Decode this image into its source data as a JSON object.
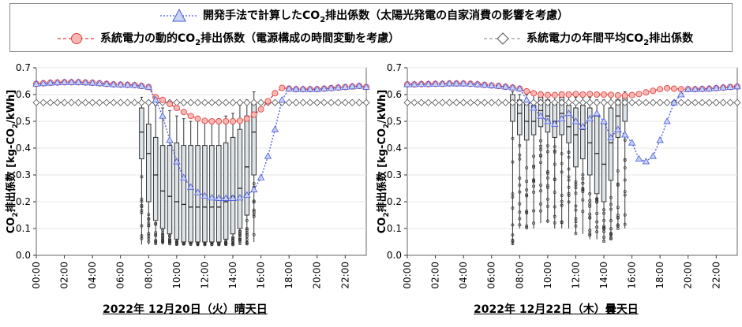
{
  "legend": {
    "method_label_pre": "開発手法で計算したCO",
    "method_label_sub": "2",
    "method_label_post": "排出係数（太陽光発電の自家消費の影響を考慮）",
    "dynamic_label_pre": "系統電力の動的CO",
    "dynamic_label_sub": "2",
    "dynamic_label_post": "排出係数（電源構成の時間変動を考慮）",
    "annual_label_pre": "系統電力の年間平均CO",
    "annual_label_sub": "2",
    "annual_label_post": "排出係数"
  },
  "colors": {
    "method": "#4a57e0",
    "method_fill": "#c9d6f2",
    "dynamic": "#e03a3a",
    "dynamic_fill": "#f7b8b4",
    "annual": "#9a9a9a",
    "box_fill": "#dde5ea",
    "box_stroke": "#333333"
  },
  "chart_data": [
    {
      "type": "line",
      "caption": "2022年 12月20日（火）晴天日",
      "ylabel_pre": "CO",
      "ylabel_sub": "2",
      "ylabel_mid": "排出係数 [kg-CO",
      "ylabel_sub2": "2",
      "ylabel_post": "/kWh]",
      "ylim": [
        0.0,
        0.7
      ],
      "yticks": [
        "0.0",
        "0.1",
        "0.2",
        "0.3",
        "0.4",
        "0.5",
        "0.6",
        "0.7"
      ],
      "xlim": [
        0,
        23.5
      ],
      "xticks": [
        "00:00",
        "02:00",
        "04:00",
        "06:00",
        "08:00",
        "10:00",
        "12:00",
        "14:00",
        "16:00",
        "18:00",
        "20:00",
        "22:00"
      ],
      "grid": true,
      "series": [
        {
          "name": "系統電力の年間平均CO2排出係数",
          "x_start": 0,
          "x_step": 0.5,
          "values": [
            0.57,
            0.57,
            0.57,
            0.57,
            0.57,
            0.57,
            0.57,
            0.57,
            0.57,
            0.57,
            0.57,
            0.57,
            0.57,
            0.57,
            0.57,
            0.57,
            0.57,
            0.57,
            0.57,
            0.57,
            0.57,
            0.57,
            0.57,
            0.57,
            0.57,
            0.57,
            0.57,
            0.57,
            0.57,
            0.57,
            0.57,
            0.57,
            0.57,
            0.57,
            0.57,
            0.57,
            0.57,
            0.57,
            0.57,
            0.57,
            0.57,
            0.57,
            0.57,
            0.57,
            0.57,
            0.57,
            0.57,
            0.57
          ]
        },
        {
          "name": "系統電力の動的CO2排出係数",
          "x_start": 0,
          "x_step": 0.5,
          "values": [
            0.64,
            0.642,
            0.644,
            0.645,
            0.646,
            0.646,
            0.646,
            0.645,
            0.644,
            0.642,
            0.64,
            0.638,
            0.637,
            0.636,
            0.635,
            0.632,
            0.628,
            0.59,
            0.58,
            0.565,
            0.55,
            0.535,
            0.52,
            0.51,
            0.502,
            0.5,
            0.5,
            0.5,
            0.5,
            0.502,
            0.51,
            0.525,
            0.545,
            0.575,
            0.605,
            0.625,
            0.622,
            0.62,
            0.62,
            0.62,
            0.62,
            0.622,
            0.624,
            0.626,
            0.628,
            0.63,
            0.632,
            0.628
          ]
        },
        {
          "name": "開発手法で計算したCO2排出係数",
          "x_start": 0,
          "x_step": 0.5,
          "values": [
            0.64,
            0.642,
            0.644,
            0.645,
            0.646,
            0.646,
            0.646,
            0.645,
            0.644,
            0.642,
            0.64,
            0.638,
            0.637,
            0.636,
            0.635,
            0.632,
            0.628,
            0.58,
            0.52,
            0.43,
            0.35,
            0.29,
            0.255,
            0.235,
            0.222,
            0.215,
            0.213,
            0.213,
            0.213,
            0.215,
            0.225,
            0.245,
            0.29,
            0.37,
            0.47,
            0.58,
            0.622,
            0.62,
            0.62,
            0.62,
            0.62,
            0.622,
            0.624,
            0.626,
            0.628,
            0.63,
            0.632,
            0.628
          ]
        }
      ],
      "boxes": [
        {
          "x": 7.5,
          "min": 0.04,
          "q1": 0.36,
          "med": 0.46,
          "q3": 0.55,
          "max": 0.59
        },
        {
          "x": 8.0,
          "min": 0.04,
          "q1": 0.2,
          "med": 0.38,
          "q3": 0.49,
          "max": 0.57
        },
        {
          "x": 8.5,
          "min": 0.04,
          "q1": 0.13,
          "med": 0.3,
          "q3": 0.44,
          "max": 0.56
        },
        {
          "x": 9.0,
          "min": 0.04,
          "q1": 0.1,
          "med": 0.24,
          "q3": 0.41,
          "max": 0.55
        },
        {
          "x": 9.5,
          "min": 0.04,
          "q1": 0.08,
          "med": 0.22,
          "q3": 0.41,
          "max": 0.54
        },
        {
          "x": 10.0,
          "min": 0.04,
          "q1": 0.06,
          "med": 0.2,
          "q3": 0.42,
          "max": 0.52
        },
        {
          "x": 10.5,
          "min": 0.04,
          "q1": 0.05,
          "med": 0.19,
          "q3": 0.41,
          "max": 0.51
        },
        {
          "x": 11.0,
          "min": 0.04,
          "q1": 0.05,
          "med": 0.18,
          "q3": 0.41,
          "max": 0.5
        },
        {
          "x": 11.5,
          "min": 0.04,
          "q1": 0.05,
          "med": 0.18,
          "q3": 0.41,
          "max": 0.5
        },
        {
          "x": 12.0,
          "min": 0.04,
          "q1": 0.05,
          "med": 0.18,
          "q3": 0.41,
          "max": 0.5
        },
        {
          "x": 12.5,
          "min": 0.04,
          "q1": 0.05,
          "med": 0.18,
          "q3": 0.41,
          "max": 0.5
        },
        {
          "x": 13.0,
          "min": 0.04,
          "q1": 0.05,
          "med": 0.18,
          "q3": 0.41,
          "max": 0.51
        },
        {
          "x": 13.5,
          "min": 0.04,
          "q1": 0.06,
          "med": 0.2,
          "q3": 0.42,
          "max": 0.52
        },
        {
          "x": 14.0,
          "min": 0.04,
          "q1": 0.08,
          "med": 0.22,
          "q3": 0.44,
          "max": 0.53
        },
        {
          "x": 14.5,
          "min": 0.04,
          "q1": 0.1,
          "med": 0.25,
          "q3": 0.47,
          "max": 0.56
        },
        {
          "x": 15.0,
          "min": 0.04,
          "q1": 0.15,
          "med": 0.33,
          "q3": 0.52,
          "max": 0.58
        },
        {
          "x": 15.5,
          "min": 0.05,
          "q1": 0.3,
          "med": 0.46,
          "q3": 0.57,
          "max": 0.61
        }
      ]
    },
    {
      "type": "line",
      "caption": "2022年 12月22日（木）曇天日",
      "ylabel_pre": "CO",
      "ylabel_sub": "2",
      "ylabel_mid": "排出係数 [kg-CO",
      "ylabel_sub2": "2",
      "ylabel_post": "/kWh]",
      "ylim": [
        0.0,
        0.7
      ],
      "yticks": [
        "0.0",
        "0.1",
        "0.2",
        "0.3",
        "0.4",
        "0.5",
        "0.6",
        "0.7"
      ],
      "xlim": [
        0,
        23.5
      ],
      "xticks": [
        "00:00",
        "02:00",
        "04:00",
        "06:00",
        "08:00",
        "10:00",
        "12:00",
        "14:00",
        "16:00",
        "18:00",
        "20:00",
        "22:00"
      ],
      "grid": true,
      "series": [
        {
          "name": "系統電力の年間平均CO2排出係数",
          "x_start": 0,
          "x_step": 0.5,
          "values": [
            0.57,
            0.57,
            0.57,
            0.57,
            0.57,
            0.57,
            0.57,
            0.57,
            0.57,
            0.57,
            0.57,
            0.57,
            0.57,
            0.57,
            0.57,
            0.57,
            0.57,
            0.57,
            0.57,
            0.57,
            0.57,
            0.57,
            0.57,
            0.57,
            0.57,
            0.57,
            0.57,
            0.57,
            0.57,
            0.57,
            0.57,
            0.57,
            0.57,
            0.57,
            0.57,
            0.57,
            0.57,
            0.57,
            0.57,
            0.57,
            0.57,
            0.57,
            0.57,
            0.57,
            0.57,
            0.57,
            0.57,
            0.57
          ]
        },
        {
          "name": "系統電力の動的CO2排出係数",
          "x_start": 0,
          "x_step": 0.5,
          "values": [
            0.638,
            0.638,
            0.639,
            0.639,
            0.64,
            0.64,
            0.641,
            0.641,
            0.641,
            0.64,
            0.638,
            0.636,
            0.634,
            0.632,
            0.629,
            0.626,
            0.622,
            0.612,
            0.605,
            0.6,
            0.598,
            0.598,
            0.6,
            0.6,
            0.602,
            0.6,
            0.602,
            0.6,
            0.6,
            0.599,
            0.597,
            0.596,
            0.598,
            0.602,
            0.608,
            0.614,
            0.62,
            0.624,
            0.622,
            0.62,
            0.62,
            0.62,
            0.621,
            0.622,
            0.624,
            0.626,
            0.628,
            0.63
          ]
        },
        {
          "name": "開発手法で計算したCO2排出係数",
          "x_start": 0,
          "x_step": 0.5,
          "values": [
            0.638,
            0.638,
            0.639,
            0.639,
            0.64,
            0.64,
            0.641,
            0.641,
            0.641,
            0.64,
            0.638,
            0.636,
            0.634,
            0.632,
            0.629,
            0.626,
            0.622,
            0.58,
            0.55,
            0.52,
            0.5,
            0.49,
            0.51,
            0.53,
            0.5,
            0.48,
            0.51,
            0.53,
            0.5,
            0.44,
            0.47,
            0.45,
            0.42,
            0.36,
            0.35,
            0.37,
            0.43,
            0.5,
            0.57,
            0.6,
            0.62,
            0.62,
            0.621,
            0.622,
            0.624,
            0.626,
            0.628,
            0.63
          ]
        }
      ],
      "boxes": [
        {
          "x": 7.5,
          "min": 0.04,
          "q1": 0.5,
          "med": 0.57,
          "q3": 0.6,
          "max": 0.61
        },
        {
          "x": 8.0,
          "min": 0.1,
          "q1": 0.45,
          "med": 0.53,
          "q3": 0.58,
          "max": 0.6
        },
        {
          "x": 8.5,
          "min": 0.1,
          "q1": 0.43,
          "med": 0.5,
          "q3": 0.57,
          "max": 0.6
        },
        {
          "x": 9.0,
          "min": 0.1,
          "q1": 0.45,
          "med": 0.5,
          "q3": 0.56,
          "max": 0.6
        },
        {
          "x": 9.5,
          "min": 0.12,
          "q1": 0.48,
          "med": 0.54,
          "q3": 0.59,
          "max": 0.61
        },
        {
          "x": 10.0,
          "min": 0.12,
          "q1": 0.46,
          "med": 0.52,
          "q3": 0.58,
          "max": 0.6
        },
        {
          "x": 10.5,
          "min": 0.1,
          "q1": 0.44,
          "med": 0.5,
          "q3": 0.57,
          "max": 0.6
        },
        {
          "x": 11.0,
          "min": 0.1,
          "q1": 0.45,
          "med": 0.53,
          "q3": 0.59,
          "max": 0.61
        },
        {
          "x": 11.5,
          "min": 0.1,
          "q1": 0.42,
          "med": 0.48,
          "q3": 0.56,
          "max": 0.6
        },
        {
          "x": 12.0,
          "min": 0.08,
          "q1": 0.33,
          "med": 0.45,
          "q3": 0.55,
          "max": 0.59
        },
        {
          "x": 12.5,
          "min": 0.08,
          "q1": 0.36,
          "med": 0.47,
          "q3": 0.56,
          "max": 0.59
        },
        {
          "x": 13.0,
          "min": 0.06,
          "q1": 0.3,
          "med": 0.42,
          "q3": 0.55,
          "max": 0.59
        },
        {
          "x": 13.5,
          "min": 0.06,
          "q1": 0.23,
          "med": 0.38,
          "q3": 0.52,
          "max": 0.58
        },
        {
          "x": 14.0,
          "min": 0.05,
          "q1": 0.2,
          "med": 0.34,
          "q3": 0.5,
          "max": 0.58
        },
        {
          "x": 14.5,
          "min": 0.06,
          "q1": 0.28,
          "med": 0.42,
          "q3": 0.55,
          "max": 0.59
        },
        {
          "x": 15.0,
          "min": 0.1,
          "q1": 0.44,
          "med": 0.52,
          "q3": 0.58,
          "max": 0.6
        },
        {
          "x": 15.5,
          "min": 0.1,
          "q1": 0.5,
          "med": 0.57,
          "q3": 0.6,
          "max": 0.61
        }
      ]
    }
  ]
}
